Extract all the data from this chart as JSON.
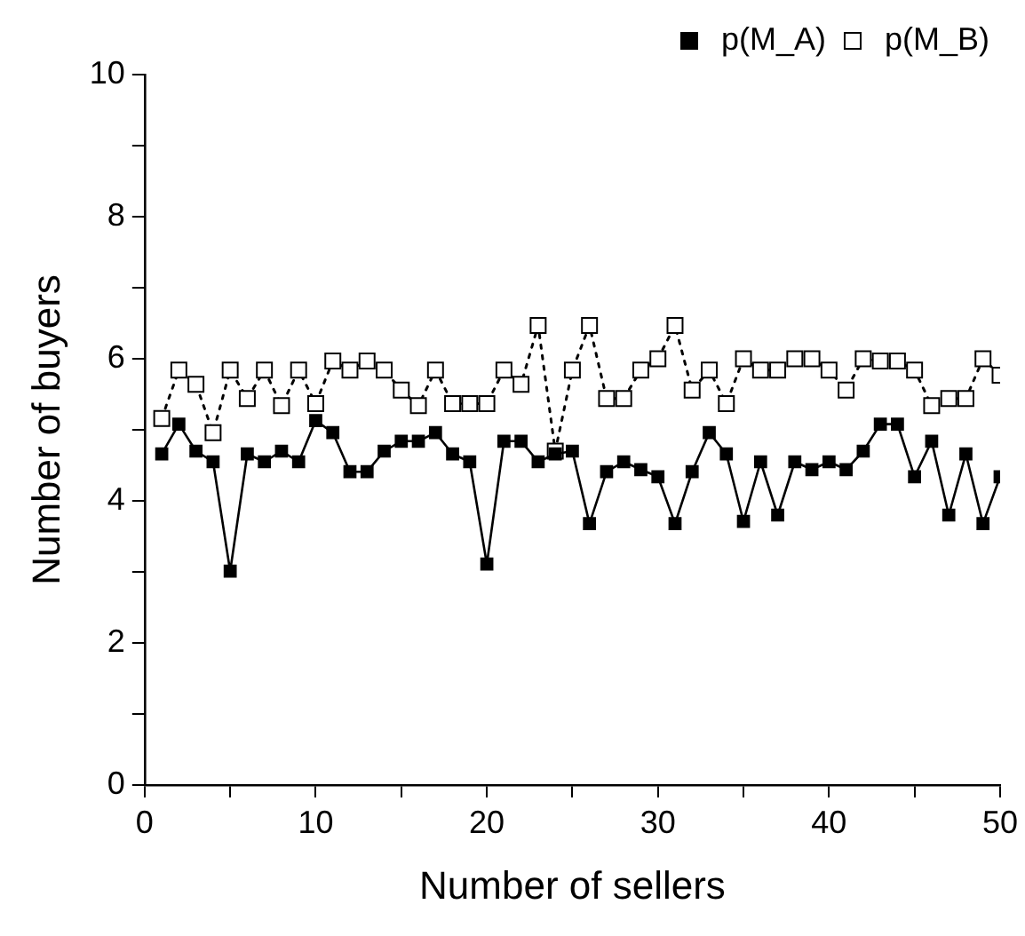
{
  "chart_data": {
    "type": "line",
    "xlabel": "Number of sellers",
    "ylabel": "Number of buyers",
    "x": [
      1,
      2,
      3,
      4,
      5,
      6,
      7,
      8,
      9,
      10,
      11,
      12,
      13,
      14,
      15,
      16,
      17,
      18,
      19,
      20,
      21,
      22,
      23,
      24,
      25,
      26,
      27,
      28,
      29,
      30,
      31,
      32,
      33,
      34,
      35,
      36,
      37,
      38,
      39,
      40,
      41,
      42,
      43,
      44,
      45,
      46,
      47,
      48,
      49,
      50
    ],
    "series": [
      {
        "name": "p(M_A)",
        "color": "#000000",
        "line_style": "solid",
        "values": [
          4.66,
          5.08,
          4.7,
          4.55,
          3.01,
          4.66,
          4.55,
          4.7,
          4.55,
          5.13,
          4.96,
          4.41,
          4.41,
          4.7,
          4.84,
          4.84,
          4.96,
          4.66,
          4.55,
          3.11,
          4.84,
          4.84,
          4.55,
          4.66,
          4.7,
          3.68,
          4.41,
          4.55,
          4.44,
          4.34,
          3.68,
          4.41,
          4.96,
          4.66,
          3.71,
          4.55,
          3.8,
          4.55,
          4.44,
          4.55,
          4.44,
          4.7,
          5.08,
          5.08,
          4.34,
          4.84,
          3.8,
          4.66,
          3.68,
          4.34
        ]
      },
      {
        "name": "p(M_B)",
        "color": "#000000",
        "line_style": "dotted",
        "values": [
          5.16,
          5.84,
          5.64,
          4.96,
          5.84,
          5.44,
          5.84,
          5.34,
          5.84,
          5.37,
          5.97,
          5.84,
          5.97,
          5.84,
          5.56,
          5.34,
          5.84,
          5.37,
          5.37,
          5.37,
          5.84,
          5.64,
          6.47,
          4.7,
          5.84,
          6.47,
          5.44,
          5.44,
          5.84,
          6.0,
          6.47,
          5.56,
          5.84,
          5.37,
          6.0,
          5.84,
          5.84,
          6.0,
          6.0,
          5.84,
          5.56,
          6.0,
          5.97,
          5.97,
          5.84,
          5.34,
          5.44,
          5.44,
          6.0,
          5.77
        ]
      }
    ],
    "xlim": [
      0,
      50
    ],
    "xticks": [
      0,
      {
        "value": 5,
        "label": null
      },
      10,
      {
        "value": 15,
        "label": null
      },
      20,
      {
        "value": 25,
        "label": null
      },
      30,
      {
        "value": 35,
        "label": null
      },
      40,
      {
        "value": 45,
        "label": null
      },
      50
    ],
    "ylim": [
      0,
      10
    ],
    "yticks": [
      0,
      {
        "value": 1,
        "label": null
      },
      2,
      {
        "value": 3,
        "label": null
      },
      4,
      {
        "value": 5,
        "label": null
      },
      6,
      {
        "value": 7,
        "label": null
      },
      8,
      {
        "value": 9,
        "label": null
      },
      10
    ],
    "grid": false,
    "legend": "top right",
    "marker": "square"
  }
}
